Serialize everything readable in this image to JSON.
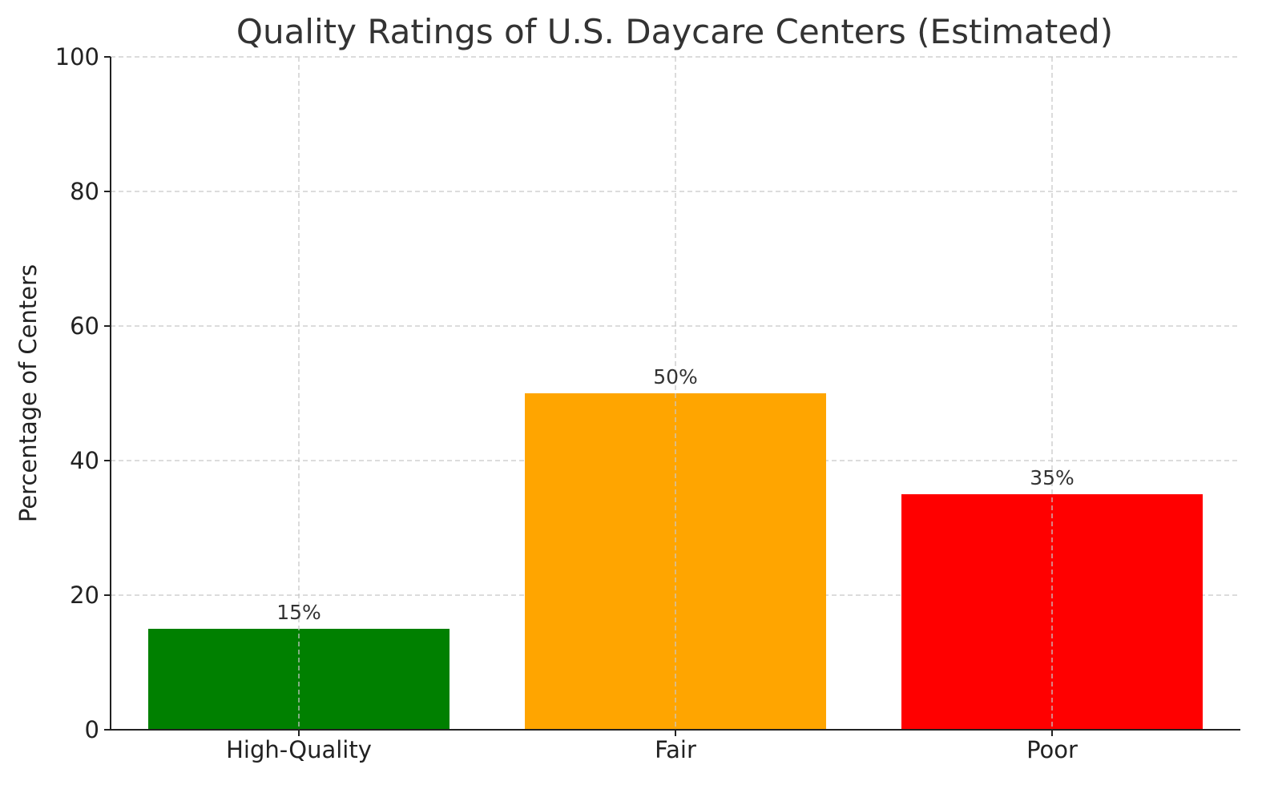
{
  "chart_data": {
    "type": "bar",
    "title": "Quality Ratings of U.S. Daycare Centers (Estimated)",
    "xlabel": "",
    "ylabel": "Percentage of Centers",
    "categories": [
      "High-Quality",
      "Fair",
      "Poor"
    ],
    "values": [
      15,
      50,
      35
    ],
    "data_labels": [
      "15%",
      "50%",
      "35%"
    ],
    "colors": [
      "#008000",
      "#FFA500",
      "#FF0000"
    ],
    "ylim": [
      0,
      100
    ],
    "yticks": [
      0,
      20,
      40,
      60,
      80,
      100
    ],
    "grid": true
  }
}
